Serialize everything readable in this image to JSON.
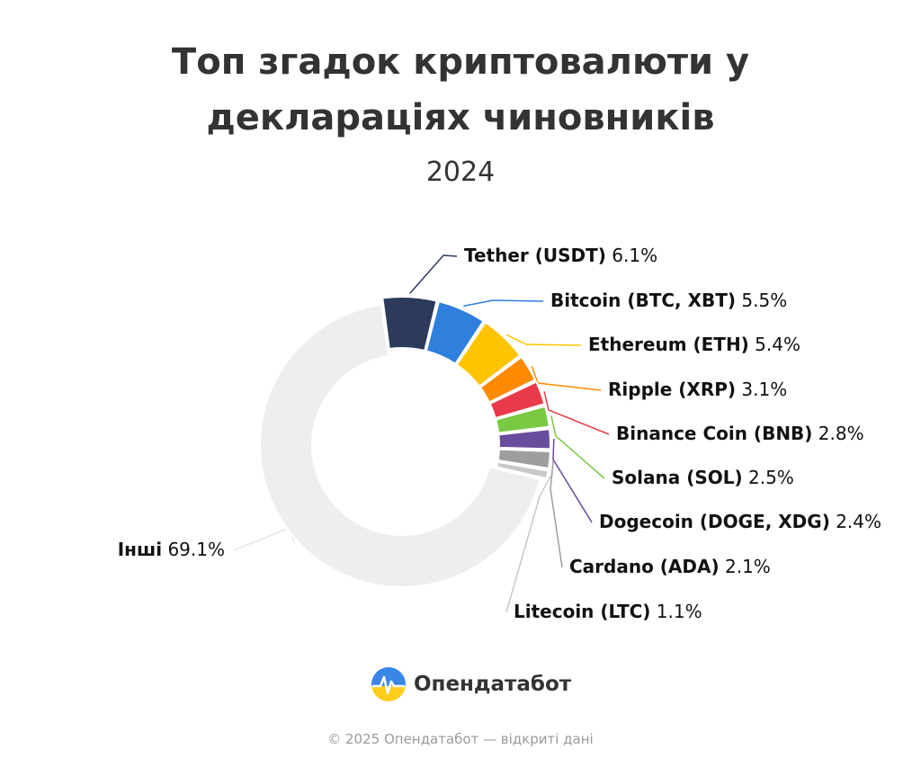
{
  "chart_data": {
    "type": "pie",
    "title_lines": [
      "Топ згадок криптовалюти у",
      "декларація‌х чиновників"
    ],
    "subtitle": "2024",
    "unit": "%",
    "slices": [
      {
        "label": "Tether (USDT)",
        "value": 6.1,
        "color": "#2c3a5c"
      },
      {
        "label": "Bitcoin (BTC, XBT)",
        "value": 5.5,
        "color": "#2f7fdd"
      },
      {
        "label": "Ethereum (ETH)",
        "value": 5.4,
        "color": "#ffc400"
      },
      {
        "label": "Ripple (XRP)",
        "value": 3.1,
        "color": "#ff8a00"
      },
      {
        "label": "Binance Coin (BNB)",
        "value": 2.8,
        "color": "#e83a4a"
      },
      {
        "label": "Solana (SOL)",
        "value": 2.5,
        "color": "#7ac943"
      },
      {
        "label": "Dogecoin (DOGE, XDG)",
        "value": 2.4,
        "color": "#6a4c9c"
      },
      {
        "label": "Cardano (ADA)",
        "value": 2.1,
        "color": "#9e9e9e"
      },
      {
        "label": "Litecoin (LTC)",
        "value": 1.1,
        "color": "#c8c8c8"
      },
      {
        "label": "Інші",
        "value": 69.1,
        "color": "#eeeeee"
      }
    ]
  },
  "brand": {
    "name": "Опендатабот",
    "logo_icon": "opendatabot-logo-icon"
  },
  "footer": {
    "copyright": "© 2025 Опендатабот — відкриті дані"
  }
}
